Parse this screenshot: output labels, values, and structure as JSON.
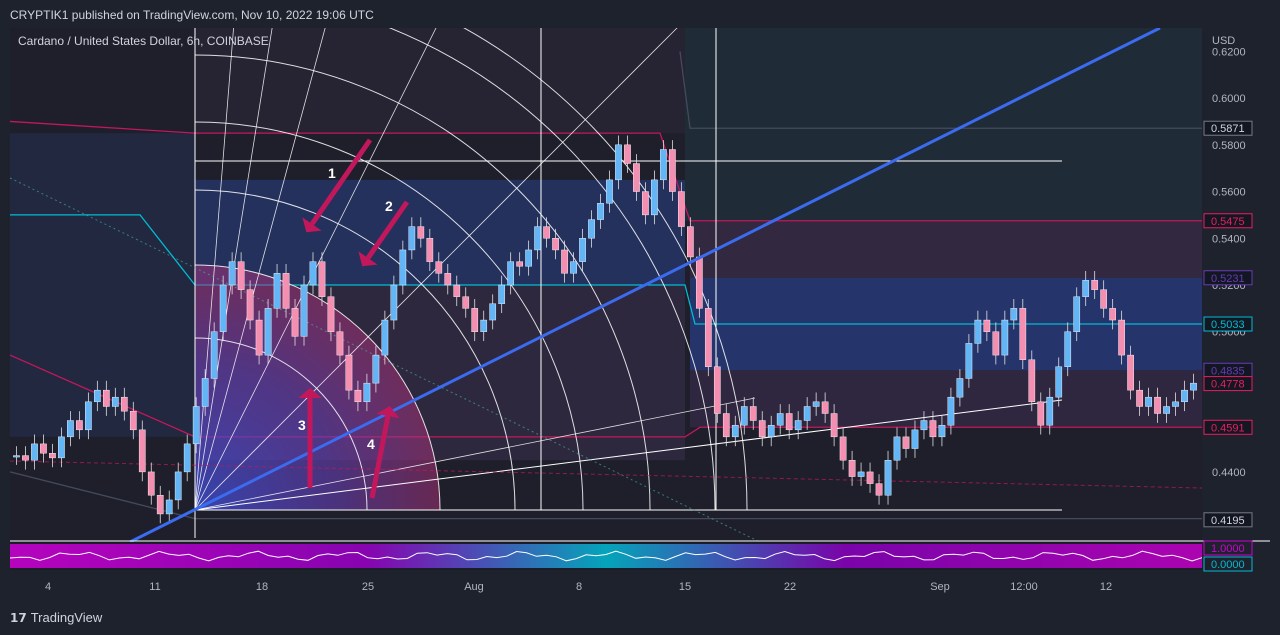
{
  "publisher": "CRYPTIK1 published on TradingView.com, Nov 10, 2022 19:06 UTC",
  "brand": "TradingView",
  "chart_data": {
    "type": "candlestick",
    "symbol_title": "Cardano / United States Dollar, 6h, COINBASE",
    "currency": "USD",
    "x_ticks": [
      "4",
      "11",
      "18",
      "25",
      "Aug",
      "8",
      "15",
      "22",
      "Sep",
      "12:00",
      "12"
    ],
    "y_ticks": [
      "0.6200",
      "0.6000",
      "0.5800",
      "0.5600",
      "0.5400",
      "0.5200",
      "0.5000",
      "0.4800",
      "0.4600",
      "0.4400",
      "0.4200"
    ],
    "ylim": [
      0.41,
      0.63
    ],
    "price_badges": [
      {
        "label": "0.5871",
        "value": 0.5871,
        "color": "#131722",
        "border": "#787b86"
      },
      {
        "label": "0.5475",
        "value": 0.5475,
        "color": "#131722",
        "border": "#e91e63"
      },
      {
        "label": "0.5231",
        "value": 0.5231,
        "color": "#131722",
        "border": "#673ab7"
      },
      {
        "label": "0.5033",
        "value": 0.5033,
        "color": "#131722",
        "border": "#00bcd4"
      },
      {
        "label": "0.4835",
        "value": 0.4835,
        "color": "#131722",
        "border": "#673ab7"
      },
      {
        "label": "0.4778",
        "value": 0.4778,
        "color": "#131722",
        "border": "#e91e63"
      },
      {
        "label": "0.4591",
        "value": 0.4591,
        "color": "#131722",
        "border": "#e91e63"
      },
      {
        "label": "0.4195",
        "value": 0.4195,
        "color": "#131722",
        "border": "#787b86"
      }
    ],
    "annotations": [
      "1",
      "2",
      "3",
      "4"
    ],
    "indicator_badges": [
      "1.0000",
      "0.0000"
    ],
    "price_path": [
      0.447,
      0.445,
      0.452,
      0.448,
      0.446,
      0.455,
      0.462,
      0.458,
      0.47,
      0.475,
      0.468,
      0.472,
      0.466,
      0.458,
      0.44,
      0.43,
      0.422,
      0.428,
      0.44,
      0.452,
      0.468,
      0.48,
      0.5,
      0.52,
      0.53,
      0.518,
      0.505,
      0.49,
      0.51,
      0.525,
      0.51,
      0.498,
      0.52,
      0.53,
      0.515,
      0.5,
      0.49,
      0.475,
      0.47,
      0.478,
      0.49,
      0.505,
      0.52,
      0.535,
      0.545,
      0.54,
      0.53,
      0.525,
      0.52,
      0.515,
      0.51,
      0.5,
      0.505,
      0.512,
      0.52,
      0.53,
      0.528,
      0.535,
      0.545,
      0.54,
      0.535,
      0.525,
      0.53,
      0.54,
      0.548,
      0.555,
      0.565,
      0.58,
      0.572,
      0.56,
      0.55,
      0.565,
      0.578,
      0.56,
      0.545,
      0.532,
      0.51,
      0.485,
      0.465,
      0.455,
      0.46,
      0.468,
      0.462,
      0.455,
      0.46,
      0.465,
      0.458,
      0.462,
      0.468,
      0.47,
      0.465,
      0.455,
      0.445,
      0.438,
      0.44,
      0.435,
      0.43,
      0.445,
      0.455,
      0.45,
      0.458,
      0.462,
      0.455,
      0.46,
      0.472,
      0.48,
      0.495,
      0.505,
      0.5,
      0.49,
      0.505,
      0.51,
      0.488,
      0.47,
      0.46,
      0.472,
      0.485,
      0.5,
      0.515,
      0.522,
      0.518,
      0.51,
      0.505,
      0.49,
      0.475,
      0.468,
      0.472,
      0.465,
      0.468,
      0.47,
      0.475,
      0.478
    ]
  }
}
